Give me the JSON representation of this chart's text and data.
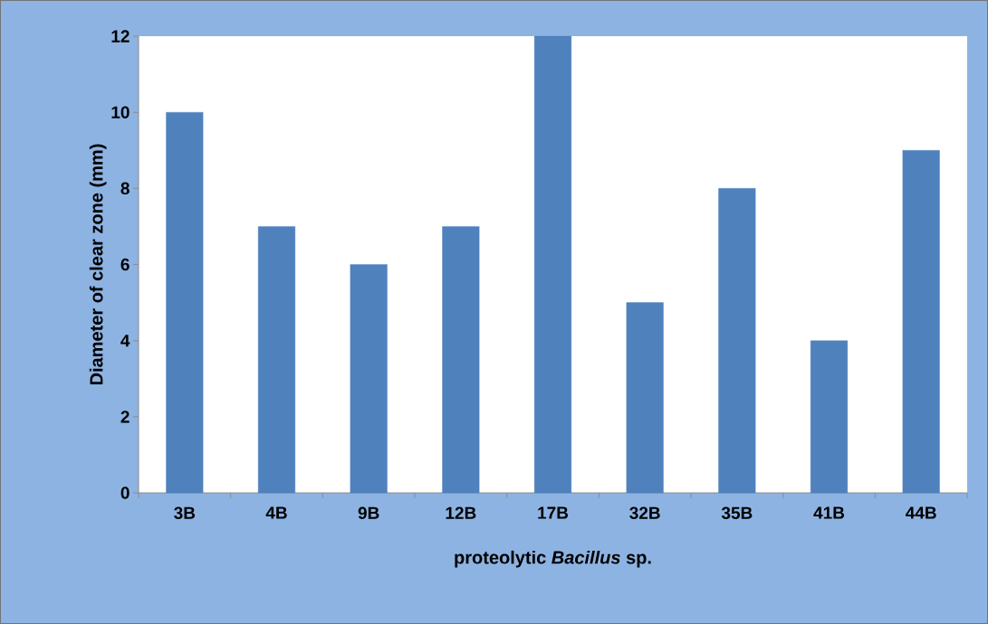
{
  "chart_data": {
    "type": "bar",
    "xlabel": "proteolytic *Bacillus* sp.",
    "ylabel": "Diameter of clear zone (mm)",
    "categories": [
      "3B",
      "4B",
      "9B",
      "12B",
      "17B",
      "32B",
      "35B",
      "41B",
      "44B"
    ],
    "values": [
      10,
      7,
      6,
      7,
      12,
      5,
      8,
      4,
      9
    ],
    "color": "#4f81bd",
    "ylim": [
      0,
      12
    ],
    "yticks": [
      0,
      2,
      4,
      6,
      8,
      10,
      12
    ],
    "grid": false
  }
}
